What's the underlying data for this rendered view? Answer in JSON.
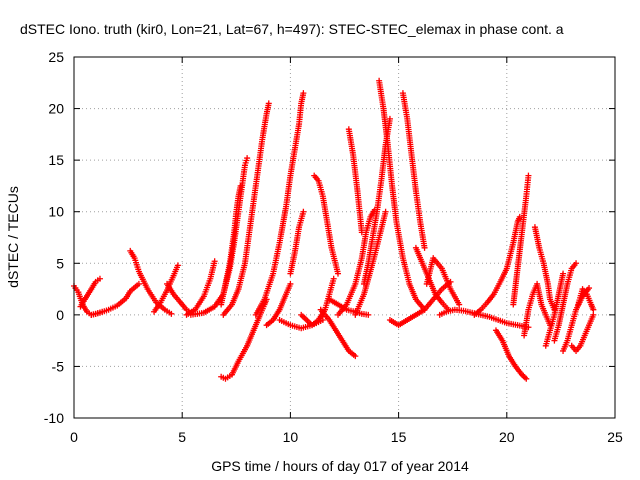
{
  "chart_data": {
    "type": "scatter",
    "title": "dSTEC Iono. truth (kir0, Lon=21, Lat=67, h=497): STEC-STEC_elemax in phase cont. a",
    "xlabel": "GPS time / hours of day 017 of year 2014",
    "ylabel": "dSTEC  / TECUs",
    "xlim": [
      0,
      25
    ],
    "ylim": [
      -10,
      25
    ],
    "x_ticks": [
      0,
      5,
      10,
      15,
      20,
      25
    ],
    "x_tick_labels": [
      "0",
      "5",
      "10",
      "15",
      "20",
      "25"
    ],
    "y_ticks": [
      -10,
      -5,
      0,
      5,
      10,
      15,
      20,
      25
    ],
    "y_tick_labels": [
      "-10",
      "-5",
      "0",
      "5",
      "10",
      "15",
      "20",
      "25"
    ],
    "grid": true,
    "legend": "none",
    "marker": "+",
    "color": "#ff0000",
    "series": [
      {
        "x": [
          0.0,
          0.2,
          0.4,
          0.6,
          0.8,
          1.0,
          1.3
        ],
        "y": [
          2.8,
          2.2,
          1.0,
          0.3,
          0.0,
          0.1,
          0.3
        ]
      },
      {
        "x": [
          0.3,
          0.5,
          0.8,
          1.0,
          1.2
        ],
        "y": [
          0.8,
          1.5,
          2.5,
          3.2,
          3.5
        ]
      },
      {
        "x": [
          0.8,
          1.2,
          1.6,
          2.0,
          2.4,
          2.6,
          3.0
        ],
        "y": [
          0.0,
          0.2,
          0.5,
          0.9,
          1.6,
          2.3,
          3.0
        ]
      },
      {
        "x": [
          2.6,
          2.8,
          3.0,
          3.4,
          3.8,
          4.2,
          4.5
        ],
        "y": [
          6.2,
          5.5,
          4.2,
          2.5,
          1.2,
          0.5,
          0.1
        ]
      },
      {
        "x": [
          3.7,
          4.0,
          4.3,
          4.6,
          4.8
        ],
        "y": [
          0.3,
          1.2,
          2.4,
          3.8,
          4.8
        ]
      },
      {
        "x": [
          4.3,
          4.6,
          5.0,
          5.2,
          5.4
        ],
        "y": [
          3.0,
          2.0,
          1.0,
          0.5,
          0.2
        ]
      },
      {
        "x": [
          5.2,
          5.6,
          6.0,
          6.3,
          6.5
        ],
        "y": [
          0.0,
          0.5,
          1.8,
          3.5,
          5.2
        ]
      },
      {
        "x": [
          5.4,
          6.0,
          6.5,
          6.9,
          7.2,
          7.4,
          7.6,
          7.8,
          7.9,
          8.0
        ],
        "y": [
          0.0,
          0.2,
          0.8,
          2.0,
          4.5,
          7.0,
          10.0,
          13.0,
          14.5,
          15.2
        ]
      },
      {
        "x": [
          6.8,
          7.0,
          7.2,
          7.4,
          7.5,
          7.6,
          7.7
        ],
        "y": [
          1.0,
          3.0,
          5.0,
          8.0,
          10.0,
          11.5,
          12.5
        ]
      },
      {
        "x": [
          6.8,
          7.0,
          7.3,
          7.6,
          8.0,
          8.3,
          8.6,
          8.8,
          8.9
        ],
        "y": [
          -6.0,
          -6.2,
          -5.8,
          -4.5,
          -3.0,
          -1.5,
          0.0,
          1.0,
          1.5
        ]
      },
      {
        "x": [
          6.9,
          7.3,
          7.6,
          7.9,
          8.1,
          8.3,
          8.5,
          8.7,
          8.9,
          9.0
        ],
        "y": [
          0.0,
          1.0,
          2.5,
          5.0,
          8.0,
          11.0,
          14.0,
          17.0,
          19.5,
          20.5
        ]
      },
      {
        "x": [
          8.4,
          8.8,
          9.2,
          9.5,
          9.8,
          10.0,
          10.2,
          10.4,
          10.5,
          10.6
        ],
        "y": [
          0.0,
          1.5,
          4.0,
          7.0,
          10.5,
          13.5,
          16.0,
          18.5,
          20.5,
          21.5
        ]
      },
      {
        "x": [
          8.9,
          9.2,
          9.5,
          9.8,
          10.0
        ],
        "y": [
          -1.0,
          -0.5,
          0.5,
          2.0,
          3.0
        ]
      },
      {
        "x": [
          9.5,
          10.0,
          10.5,
          11.0,
          11.5
        ],
        "y": [
          -0.5,
          -1.0,
          -1.3,
          -1.0,
          -0.5
        ]
      },
      {
        "x": [
          10.0,
          10.2,
          10.4,
          10.6
        ],
        "y": [
          4.0,
          6.0,
          8.5,
          10.0
        ]
      },
      {
        "x": [
          10.5,
          11.0,
          11.3,
          11.6,
          11.8,
          12.0
        ],
        "y": [
          0.0,
          -1.0,
          -0.5,
          0.5,
          2.0,
          3.5
        ]
      },
      {
        "x": [
          11.1,
          11.3,
          11.5,
          11.7,
          11.9,
          12.2
        ],
        "y": [
          13.5,
          13.0,
          11.5,
          9.0,
          6.5,
          4.0
        ]
      },
      {
        "x": [
          11.4,
          11.8,
          12.1,
          12.4,
          12.7,
          13.0
        ],
        "y": [
          0.5,
          -0.5,
          -1.5,
          -2.5,
          -3.5,
          -4.0
        ]
      },
      {
        "x": [
          11.8,
          12.2,
          12.6,
          13.0,
          13.3,
          13.6
        ],
        "y": [
          1.5,
          1.0,
          0.5,
          0.3,
          0.1,
          0.0
        ]
      },
      {
        "x": [
          12.2,
          12.6,
          13.0,
          13.3,
          13.5,
          13.7,
          13.9
        ],
        "y": [
          0.0,
          1.0,
          3.0,
          5.5,
          8.0,
          9.5,
          10.2
        ]
      },
      {
        "x": [
          12.7,
          12.9,
          13.1,
          13.3
        ],
        "y": [
          18.0,
          15.5,
          12.0,
          8.0
        ]
      },
      {
        "x": [
          13.0,
          13.4,
          13.8,
          14.1,
          14.4
        ],
        "y": [
          0.0,
          2.0,
          5.0,
          7.5,
          10.0
        ]
      },
      {
        "x": [
          13.4,
          13.6,
          13.8,
          14.0,
          14.2,
          14.4,
          14.6
        ],
        "y": [
          3.0,
          5.0,
          7.5,
          10.0,
          13.0,
          16.5,
          19.0
        ]
      },
      {
        "x": [
          14.1,
          14.3,
          14.5,
          14.7,
          14.9,
          15.2,
          15.5,
          15.8,
          16.2
        ],
        "y": [
          22.7,
          20.0,
          16.5,
          12.5,
          9.0,
          5.5,
          3.0,
          1.5,
          0.5
        ]
      },
      {
        "x": [
          14.6,
          15.0,
          15.4,
          15.8,
          16.2,
          16.6,
          17.0,
          17.4
        ],
        "y": [
          -0.5,
          -1.0,
          -0.5,
          0.0,
          0.5,
          1.5,
          2.5,
          3.2
        ]
      },
      {
        "x": [
          15.2,
          15.4,
          15.6,
          15.8,
          16.0,
          16.2
        ],
        "y": [
          21.5,
          19.0,
          15.5,
          12.0,
          9.0,
          6.5
        ]
      },
      {
        "x": [
          15.8,
          16.1,
          16.4,
          16.7,
          17.0,
          17.3
        ],
        "y": [
          6.5,
          5.0,
          3.5,
          2.0,
          1.2,
          0.5
        ]
      },
      {
        "x": [
          16.3,
          16.6,
          17.0,
          17.4,
          17.8
        ],
        "y": [
          3.0,
          5.5,
          4.5,
          2.5,
          1.0
        ]
      },
      {
        "x": [
          16.9,
          17.2,
          17.6,
          18.0,
          18.4,
          18.8,
          19.2,
          19.6,
          20.0,
          20.5,
          21.0
        ],
        "y": [
          0.0,
          0.3,
          0.5,
          0.4,
          0.2,
          0.0,
          -0.2,
          -0.5,
          -0.8,
          -1.0,
          -1.2
        ]
      },
      {
        "x": [
          18.5,
          18.8,
          19.1,
          19.4,
          19.7,
          20.0,
          20.3,
          20.5,
          20.6
        ],
        "y": [
          0.0,
          0.5,
          1.2,
          2.0,
          3.2,
          4.5,
          7.0,
          9.0,
          9.5
        ]
      },
      {
        "x": [
          19.5,
          19.8,
          20.1,
          20.4,
          20.7,
          20.9
        ],
        "y": [
          -1.5,
          -2.5,
          -4.0,
          -5.0,
          -5.8,
          -6.2
        ]
      },
      {
        "x": [
          20.3,
          20.5,
          20.7,
          20.9,
          21.0
        ],
        "y": [
          1.0,
          4.5,
          8.0,
          11.5,
          13.5
        ]
      },
      {
        "x": [
          20.8,
          21.0,
          21.2,
          21.4,
          21.6,
          21.8,
          22.0
        ],
        "y": [
          -2.0,
          0.5,
          2.0,
          3.0,
          1.0,
          0.0,
          -1.0
        ]
      },
      {
        "x": [
          21.3,
          21.5,
          21.7,
          21.9,
          22.0,
          22.2
        ],
        "y": [
          8.5,
          6.5,
          5.0,
          3.0,
          1.5,
          0.5
        ]
      },
      {
        "x": [
          21.8,
          22.0,
          22.2,
          22.4,
          22.6
        ],
        "y": [
          -3.0,
          -1.5,
          0.0,
          2.0,
          4.0
        ]
      },
      {
        "x": [
          22.2,
          22.4,
          22.6,
          22.8,
          23.0,
          23.2
        ],
        "y": [
          -2.5,
          -1.0,
          1.0,
          3.0,
          4.5,
          5.0
        ]
      },
      {
        "x": [
          22.6,
          22.8,
          23.0,
          23.2,
          23.5,
          23.8
        ],
        "y": [
          -3.5,
          -2.5,
          -1.0,
          0.5,
          1.8,
          2.6
        ]
      },
      {
        "x": [
          23.0,
          23.2,
          23.4,
          23.6,
          23.8,
          24.0
        ],
        "y": [
          -3.0,
          -3.5,
          -3.0,
          -2.0,
          -1.0,
          0.0
        ]
      },
      {
        "x": [
          23.3,
          23.5,
          23.7,
          23.9,
          24.0
        ],
        "y": [
          1.0,
          2.5,
          2.0,
          1.0,
          0.5
        ]
      }
    ]
  }
}
